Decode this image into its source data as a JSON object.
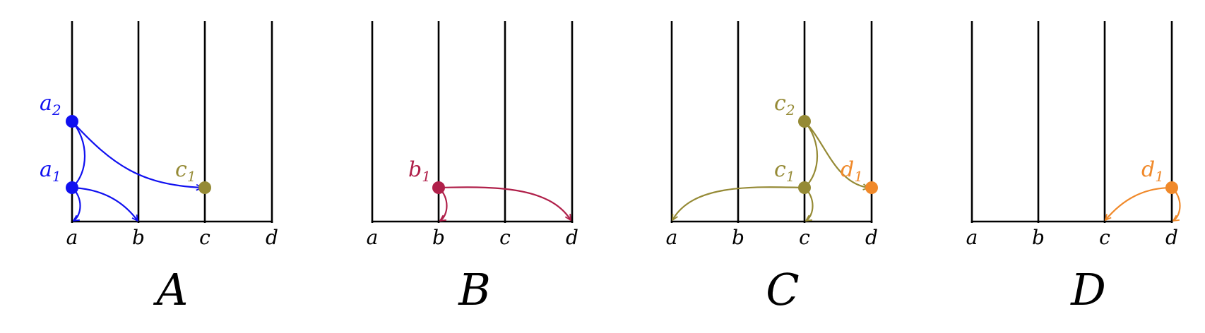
{
  "colors": {
    "blue": "#1010f0",
    "crimson": "#b0204a",
    "olive": "#958a35",
    "orange": "#f0892a",
    "axis": "#000000"
  },
  "panels": [
    {
      "title": "A",
      "ticks": [
        "a",
        "b",
        "c",
        "d"
      ],
      "points": [
        {
          "base": "a",
          "sub": "2",
          "color": "blue"
        },
        {
          "base": "a",
          "sub": "1",
          "color": "blue"
        },
        {
          "base": "c",
          "sub": "1",
          "color": "olive"
        }
      ]
    },
    {
      "title": "B",
      "ticks": [
        "a",
        "b",
        "c",
        "d"
      ],
      "points": [
        {
          "base": "b",
          "sub": "1",
          "color": "crimson"
        }
      ]
    },
    {
      "title": "C",
      "ticks": [
        "a",
        "b",
        "c",
        "d"
      ],
      "points": [
        {
          "base": "c",
          "sub": "2",
          "color": "olive"
        },
        {
          "base": "c",
          "sub": "1",
          "color": "olive"
        },
        {
          "base": "d",
          "sub": "1",
          "color": "orange"
        }
      ]
    },
    {
      "title": "D",
      "ticks": [
        "a",
        "b",
        "c",
        "d"
      ],
      "points": [
        {
          "base": "d",
          "sub": "1",
          "color": "orange"
        }
      ]
    }
  ]
}
